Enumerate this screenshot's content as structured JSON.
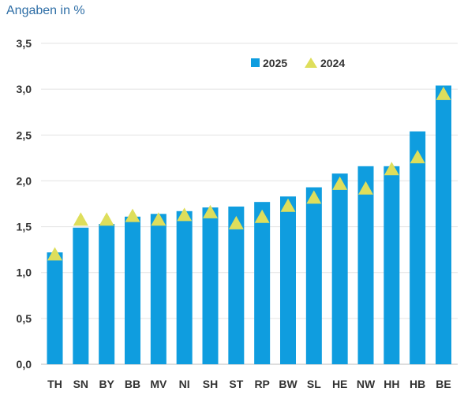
{
  "unit_label": "Angaben in %",
  "colors": {
    "bar": "#0f9ddf",
    "marker": "#dede5b",
    "grid": "#e3e3e3",
    "text": "#333333",
    "unit": "#2e6ea6"
  },
  "chart_data": {
    "type": "bar",
    "title": "",
    "ylabel": "Angaben in %",
    "xlabel": "",
    "ylim": [
      0,
      3.5
    ],
    "yticks": [
      "0,0",
      "0,5",
      "1,0",
      "1,5",
      "2,0",
      "2,5",
      "3,0",
      "3,5"
    ],
    "grid": true,
    "legend_position": "top-center",
    "categories": [
      "TH",
      "SN",
      "BY",
      "BB",
      "MV",
      "NI",
      "SH",
      "ST",
      "RP",
      "BW",
      "SL",
      "HE",
      "NW",
      "HH",
      "HB",
      "BE"
    ],
    "series": [
      {
        "name": "2025",
        "kind": "bar",
        "values": [
          1.22,
          1.49,
          1.53,
          1.61,
          1.64,
          1.67,
          1.71,
          1.72,
          1.77,
          1.83,
          1.93,
          2.08,
          2.16,
          2.16,
          2.54,
          3.04
        ]
      },
      {
        "name": "2024",
        "kind": "marker-triangle",
        "values": [
          1.19,
          1.57,
          1.57,
          1.61,
          1.57,
          1.62,
          1.65,
          1.53,
          1.6,
          1.72,
          1.81,
          1.96,
          1.91,
          2.12,
          2.25,
          2.94
        ]
      }
    ]
  }
}
